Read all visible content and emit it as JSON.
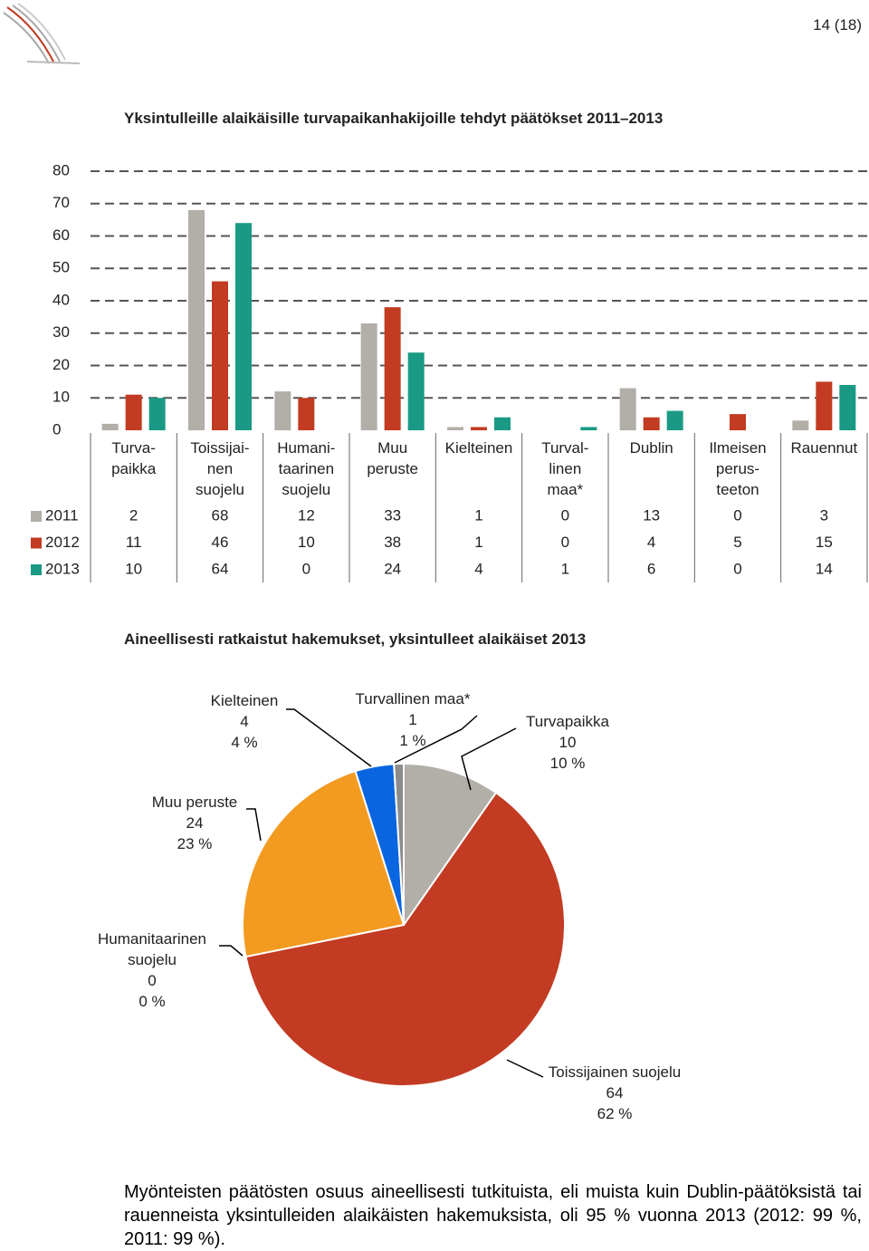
{
  "header": {
    "page": "14 (18)"
  },
  "chart_data": [
    {
      "type": "bar",
      "title": "Yksintulleille alaikäisille turvapaikanhakijoille tehdyt päätökset 2011–2013",
      "categories": [
        "Turva-\npaikka",
        "Toissijai-\nnen\nsuojelu",
        "Humani-\ntaarinen\nsuojelu",
        "Muu\nperuste",
        "Kielteinen",
        "Turval-\nlinen\nmaa*",
        "Dublin",
        "Ilmeisen\nperus-\nteeton",
        "Rauennut"
      ],
      "series": [
        {
          "name": "2011",
          "color": "#b2aea8",
          "values": [
            2,
            68,
            12,
            33,
            1,
            0,
            13,
            0,
            3
          ]
        },
        {
          "name": "2012",
          "color": "#c23b22",
          "values": [
            11,
            46,
            10,
            38,
            1,
            0,
            4,
            5,
            15
          ]
        },
        {
          "name": "2013",
          "color": "#1a9a84",
          "values": [
            10,
            64,
            0,
            24,
            4,
            1,
            6,
            0,
            14
          ]
        }
      ],
      "ylim": [
        0,
        80
      ],
      "yticks": [
        0,
        10,
        20,
        30,
        40,
        50,
        60,
        70,
        80
      ],
      "grid": true
    },
    {
      "type": "pie",
      "title": "Aineellisesti ratkaistut hakemukset, yksintulleet alaikäiset 2013",
      "categories": [
        "Turvapaikka",
        "Toissijainen suojelu",
        "Humanitaarinen suojelu",
        "Muu peruste",
        "Kielteinen",
        "Turvallinen maa*"
      ],
      "values": [
        10,
        64,
        0,
        24,
        4,
        1
      ],
      "percent_labels": [
        "10 %",
        "62 %",
        "0 %",
        "23 %",
        "4 %",
        "1 %"
      ],
      "colors": [
        "#b2aea8",
        "#c23b22",
        "#1a9a84",
        "#f39a21",
        "#0a66e0",
        "#8c8c8c"
      ]
    }
  ],
  "paragraph": "Myönteisten päätösten osuus aineellisesti tutkituista, eli muista kuin Dublin-päätöksistä tai rauenneista yksintulleiden alaikäisten hakemuksista, oli 95 % vuonna 2013 (2012: 99 %, 2011: 99 %)."
}
